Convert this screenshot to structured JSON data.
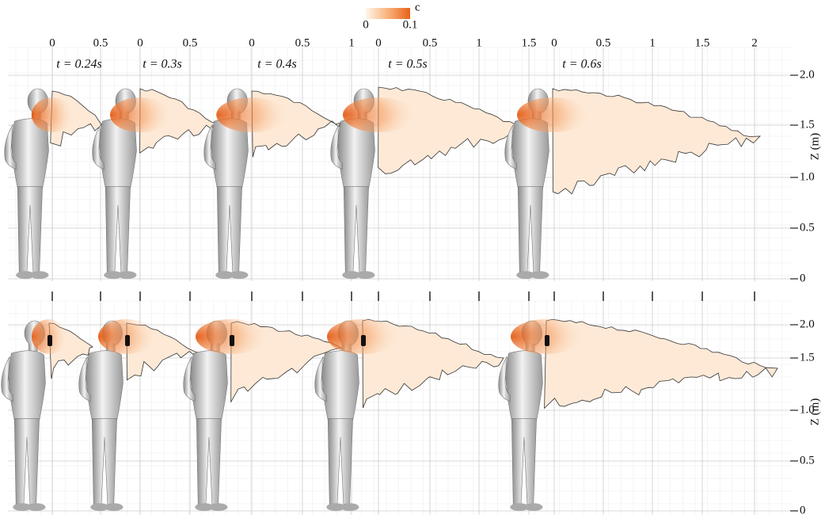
{
  "colorbar": {
    "label": "c",
    "min": "0",
    "max": "0.1"
  },
  "panels": [
    {
      "time": "t = 0.24s",
      "xticks": [
        "0",
        "0.5"
      ]
    },
    {
      "time": "t = 0.3s",
      "xticks": [
        "0",
        "0.5"
      ]
    },
    {
      "time": "t = 0.4s",
      "xticks": [
        "0",
        "0.5",
        "1"
      ]
    },
    {
      "time": "t = 0.5s",
      "xticks": [
        "0",
        "0.5",
        "1",
        "1.5"
      ]
    },
    {
      "time": "t = 0.6s",
      "xticks": [
        "0",
        "0.5",
        "1",
        "1.5",
        "2"
      ]
    }
  ],
  "z_axis": {
    "label": "Z (m)",
    "ticks": [
      "2.0",
      "1.5",
      "1.0",
      "0.5",
      "0"
    ]
  }
}
